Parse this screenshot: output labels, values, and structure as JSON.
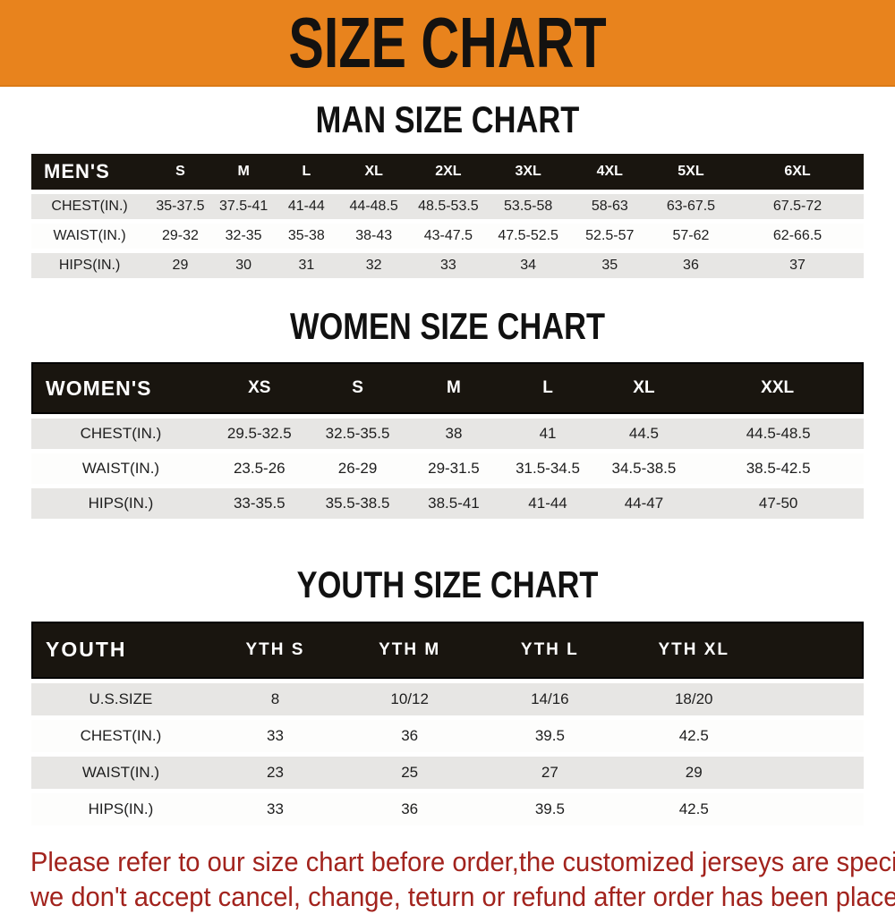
{
  "banner": {
    "title": "SIZE CHART"
  },
  "colors": {
    "banner_orange": "#e8831d",
    "header_black": "#19150f",
    "row_gray": "#e7e6e4",
    "note_red": "#a2231d"
  },
  "sections": [
    {
      "heading": "MAN SIZE CHART",
      "table": {
        "header": [
          "MEN'S",
          "S",
          "M",
          "L",
          "XL",
          "2XL",
          "3XL",
          "4XL",
          "5XL",
          "6XL"
        ],
        "rows": [
          [
            "CHEST(IN.)",
            "35-37.5",
            "37.5-41",
            "41-44",
            "44-48.5",
            "48.5-53.5",
            "53.5-58",
            "58-63",
            "63-67.5",
            "67.5-72"
          ],
          [
            "WAIST(IN.)",
            "29-32",
            "32-35",
            "35-38",
            "38-43",
            "43-47.5",
            "47.5-52.5",
            "52.5-57",
            "57-62",
            "62-66.5"
          ],
          [
            "HIPS(IN.)",
            "29",
            "30",
            "31",
            "32",
            "33",
            "34",
            "35",
            "36",
            "37"
          ]
        ]
      }
    },
    {
      "heading": "WOMEN SIZE CHART",
      "table": {
        "header": [
          "WOMEN'S",
          "XS",
          "S",
          "M",
          "L",
          "XL",
          "XXL"
        ],
        "rows": [
          [
            "CHEST(IN.)",
            "29.5-32.5",
            "32.5-35.5",
            "38",
            "41",
            "44.5",
            "44.5-48.5"
          ],
          [
            "WAIST(IN.)",
            "23.5-26",
            "26-29",
            "29-31.5",
            "31.5-34.5",
            "34.5-38.5",
            "38.5-42.5"
          ],
          [
            "HIPS(IN.)",
            "33-35.5",
            "35.5-38.5",
            "38.5-41",
            "41-44",
            "44-47",
            "47-50"
          ]
        ]
      }
    },
    {
      "heading": "YOUTH SIZE CHART",
      "table": {
        "header": [
          "YOUTH",
          "YTH S",
          "YTH M",
          "YTH L",
          "YTH XL"
        ],
        "rows": [
          [
            "U.S.SIZE",
            "8",
            "10/12",
            "14/16",
            "18/20"
          ],
          [
            "CHEST(IN.)",
            "33",
            "36",
            "39.5",
            "42.5"
          ],
          [
            "WAIST(IN.)",
            "23",
            "25",
            "27",
            "29"
          ],
          [
            "HIPS(IN.)",
            "33",
            "36",
            "39.5",
            "42.5"
          ]
        ]
      }
    }
  ],
  "footer": {
    "lines": [
      "Please refer to our size chart before order,the customized jerseys are special products,",
      "we don't accept cancel, change, teturn or refund after order has been placed!"
    ]
  }
}
